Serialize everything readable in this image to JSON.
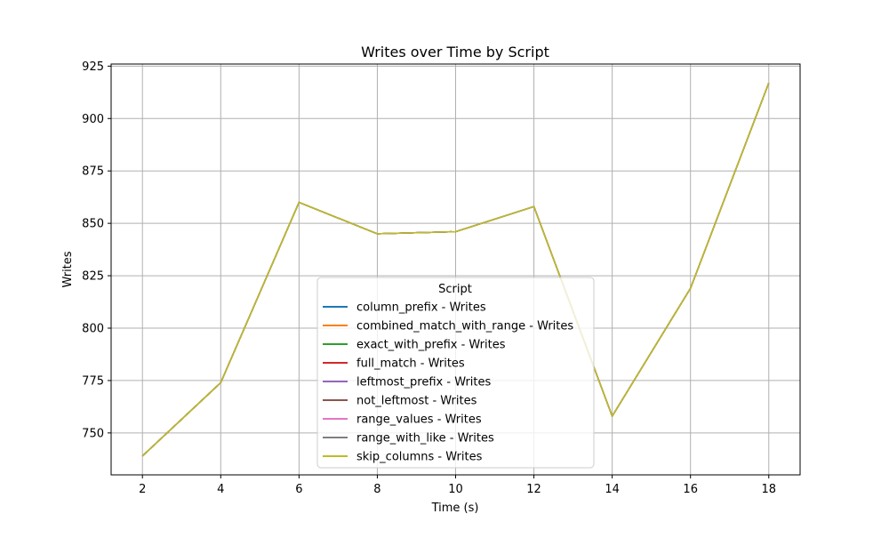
{
  "chart_data": {
    "type": "line",
    "title": "Writes over Time by Script",
    "xlabel": "Time (s)",
    "ylabel": "Writes",
    "xlim": [
      1.2,
      18.8
    ],
    "ylim": [
      730,
      926
    ],
    "xticks": [
      2,
      4,
      6,
      8,
      10,
      12,
      14,
      16,
      18
    ],
    "yticks": [
      750,
      775,
      800,
      825,
      850,
      875,
      900,
      925
    ],
    "grid": true,
    "legend": {
      "title": "Script",
      "placement": "bottom-center"
    },
    "x": [
      2,
      4,
      6,
      8,
      10,
      12,
      14,
      16,
      18
    ],
    "series": [
      {
        "name": "column_prefix - Writes",
        "color": "#1f77b4",
        "values": [
          739,
          774,
          860,
          845,
          846,
          858,
          758,
          819,
          917
        ]
      },
      {
        "name": "combined_match_with_range - Writes",
        "color": "#ff7f0e",
        "values": [
          739,
          774,
          860,
          845,
          846,
          858,
          758,
          819,
          917
        ]
      },
      {
        "name": "exact_with_prefix - Writes",
        "color": "#2ca02c",
        "values": [
          739,
          774,
          860,
          845,
          846,
          858,
          758,
          819,
          917
        ]
      },
      {
        "name": "full_match - Writes",
        "color": "#d62728",
        "values": [
          739,
          774,
          860,
          845,
          846,
          858,
          758,
          819,
          917
        ]
      },
      {
        "name": "leftmost_prefix - Writes",
        "color": "#9467bd",
        "values": [
          739,
          774,
          860,
          845,
          846,
          858,
          758,
          819,
          917
        ]
      },
      {
        "name": "not_leftmost - Writes",
        "color": "#8c564b",
        "values": [
          739,
          774,
          860,
          845,
          846,
          858,
          758,
          819,
          917
        ]
      },
      {
        "name": "range_values - Writes",
        "color": "#e377c2",
        "values": [
          739,
          774,
          860,
          845,
          846,
          858,
          758,
          819,
          917
        ]
      },
      {
        "name": "range_with_like - Writes",
        "color": "#7f7f7f",
        "values": [
          739,
          774,
          860,
          845,
          846,
          858,
          758,
          819,
          917
        ]
      },
      {
        "name": "skip_columns - Writes",
        "color": "#bcbd22",
        "values": [
          739,
          774,
          860,
          845,
          846,
          858,
          758,
          819,
          917
        ]
      }
    ]
  }
}
